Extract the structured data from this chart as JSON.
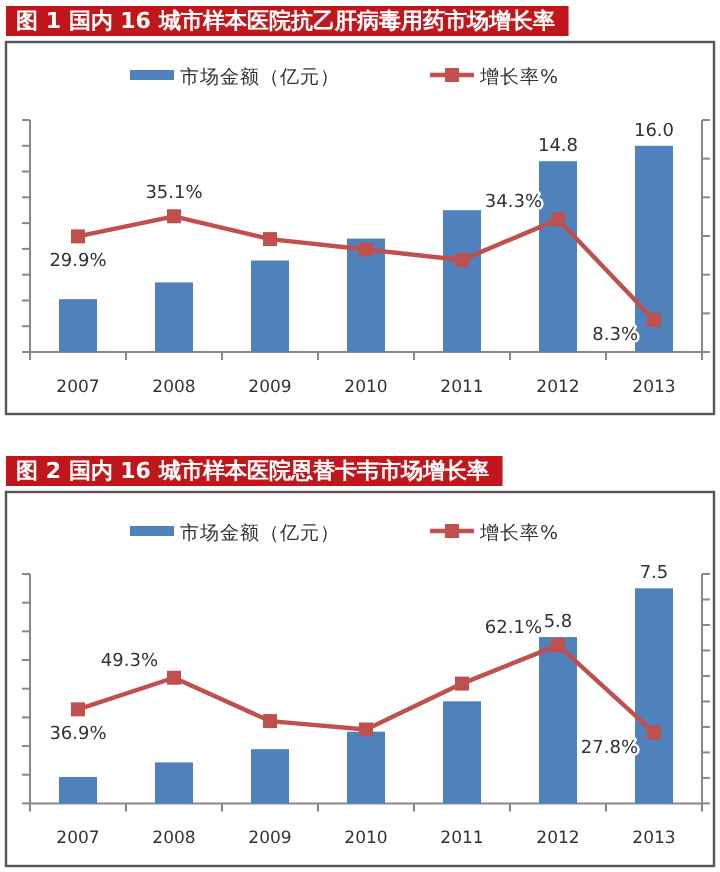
{
  "chart_data": [
    {
      "type": "bar",
      "title": "图 1 国内 16 城市样本医院抗乙肝病毒用药市场增长率",
      "categories": [
        "2007",
        "2008",
        "2009",
        "2010",
        "2011",
        "2012",
        "2013"
      ],
      "series": [
        {
          "name": "市场金额（亿元）",
          "color": "#4f81bd",
          "values": [
            4.1,
            5.4,
            7.1,
            8.8,
            11.0,
            14.8,
            16.0
          ],
          "value_labels": [
            null,
            null,
            null,
            null,
            null,
            "14.8",
            "16.0"
          ]
        },
        {
          "name": "增长率%",
          "type": "line",
          "axis": "y2",
          "color": "#c0504d",
          "values": [
            29.9,
            35.1,
            29.2,
            26.5,
            23.8,
            34.3,
            8.3
          ],
          "value_labels": [
            "29.9%",
            "35.1%",
            null,
            null,
            null,
            "34.3%",
            "8.3%"
          ]
        }
      ],
      "ylim": [
        0,
        18
      ],
      "yticks": [
        {
          "value": 0,
          "label": null
        },
        {
          "value": 2,
          "label": null
        },
        {
          "value": 4,
          "label": null
        },
        {
          "value": 6,
          "label": null
        },
        {
          "value": 8,
          "label": null
        },
        {
          "value": 10,
          "label": null
        },
        {
          "value": 12,
          "label": null
        },
        {
          "value": 14,
          "label": null
        },
        {
          "value": 16,
          "label": null
        },
        {
          "value": 18,
          "label": null
        }
      ],
      "y2lim": [
        0,
        60
      ],
      "y2ticks": [
        {
          "value": 0,
          "label": null
        },
        {
          "value": 10,
          "label": null
        },
        {
          "value": 20,
          "label": null
        },
        {
          "value": 30,
          "label": null
        },
        {
          "value": 40,
          "label": null
        },
        {
          "value": 50,
          "label": null
        },
        {
          "value": 60,
          "label": null
        }
      ],
      "tick_labels": "x",
      "legend": "top",
      "marker": "square",
      "line_style": "solid"
    },
    {
      "type": "bar",
      "title": "图 2 国内 16 城市样本医院恩替卡韦市场增长率",
      "categories": [
        "2007",
        "2008",
        "2009",
        "2010",
        "2011",
        "2012",
        "2013"
      ],
      "series": [
        {
          "name": "市场金额（亿元）",
          "color": "#4f81bd",
          "values": [
            0.92,
            1.43,
            1.89,
            2.5,
            3.56,
            5.8,
            7.5
          ],
          "value_labels": [
            null,
            null,
            null,
            null,
            null,
            "5.8",
            "7.5"
          ]
        },
        {
          "name": "增长率%",
          "type": "line",
          "axis": "y2",
          "color": "#c0504d",
          "values": [
            36.9,
            49.3,
            32.3,
            29.0,
            47.0,
            62.1,
            27.8
          ],
          "value_labels": [
            "36.9%",
            "49.3%",
            null,
            null,
            null,
            "62.1%",
            "27.8%"
          ]
        }
      ],
      "ylim": [
        0,
        8
      ],
      "yticks": [
        {
          "value": 0,
          "label": null
        },
        {
          "value": 1,
          "label": null
        },
        {
          "value": 2,
          "label": null
        },
        {
          "value": 3,
          "label": null
        },
        {
          "value": 4,
          "label": null
        },
        {
          "value": 5,
          "label": null
        },
        {
          "value": 6,
          "label": null
        },
        {
          "value": 7,
          "label": null
        },
        {
          "value": 8,
          "label": null
        }
      ],
      "y2lim": [
        0,
        90
      ],
      "y2ticks": [
        {
          "value": 0,
          "label": null
        },
        {
          "value": 10,
          "label": null
        },
        {
          "value": 20,
          "label": null
        },
        {
          "value": 30,
          "label": null
        },
        {
          "value": 40,
          "label": null
        },
        {
          "value": 50,
          "label": null
        },
        {
          "value": 60,
          "label": null
        },
        {
          "value": 70,
          "label": null
        },
        {
          "value": 80,
          "label": null
        },
        {
          "value": 90,
          "label": null
        }
      ],
      "tick_labels": "x",
      "legend": "top",
      "marker": "square",
      "line_style": "solid"
    }
  ]
}
